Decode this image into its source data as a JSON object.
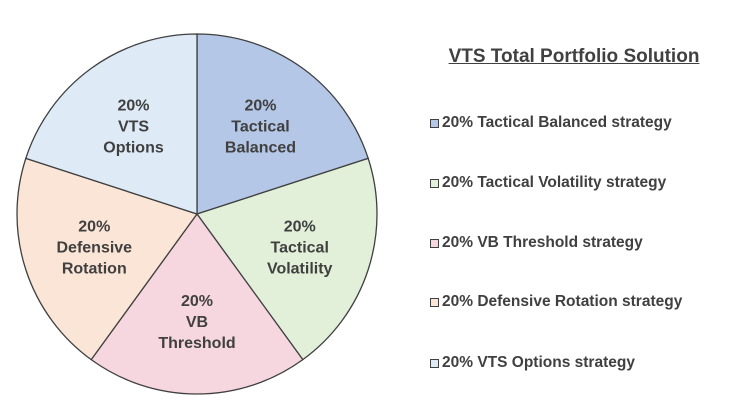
{
  "chart_data": {
    "type": "pie",
    "title": "VTS Total Portfolio Solution",
    "slices": [
      {
        "label_lines": [
          "20%",
          "Tactical",
          "Balanced"
        ],
        "value": 20,
        "legend": "20% Tactical Balanced strategy",
        "color": "#b4c7e7"
      },
      {
        "label_lines": [
          "20%",
          "Tactical",
          "Volatility"
        ],
        "value": 20,
        "legend": "20% Tactical Volatility strategy",
        "color": "#e2f0d9"
      },
      {
        "label_lines": [
          "20%",
          "VB",
          "Threshold"
        ],
        "value": 20,
        "legend": "20% VB Threshold strategy",
        "color": "#f6d7df"
      },
      {
        "label_lines": [
          "20%",
          "Defensive",
          "Rotation"
        ],
        "value": 20,
        "legend": "20% Defensive Rotation strategy",
        "color": "#fbe5d6"
      },
      {
        "label_lines": [
          "20%",
          "VTS",
          "Options"
        ],
        "value": 20,
        "legend": "20% VTS Options strategy",
        "color": "#deebf7"
      }
    ],
    "legend_position": "right",
    "start_angle": "12 o'clock",
    "direction": "clockwise"
  }
}
